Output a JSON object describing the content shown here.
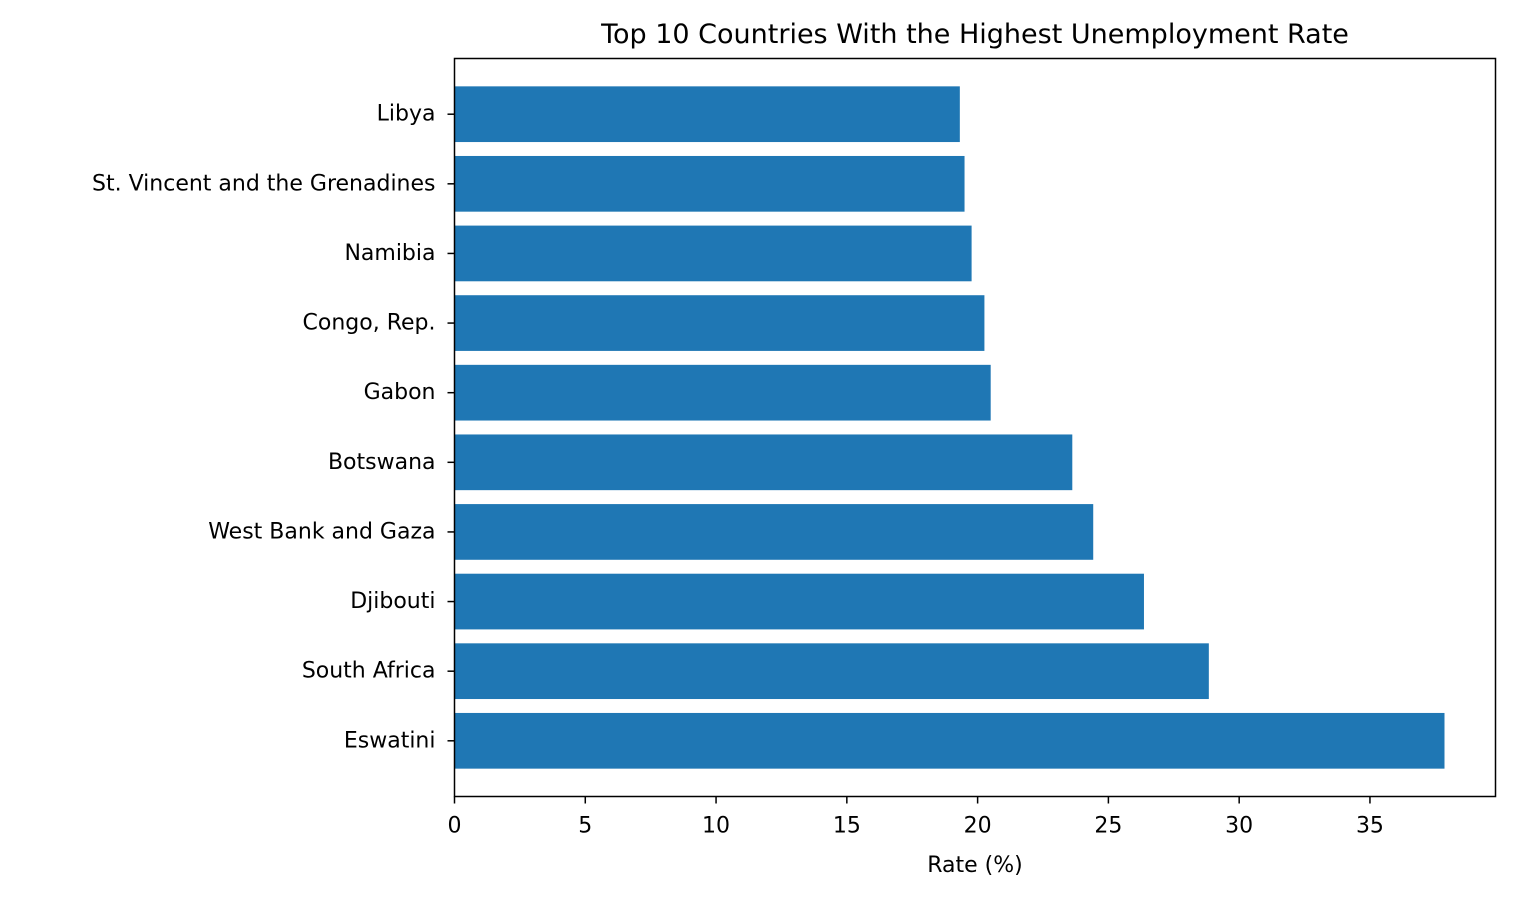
{
  "chart_data": {
    "type": "bar",
    "orientation": "horizontal",
    "title": "Top 10 Countries With the Highest Unemployment Rate",
    "xlabel": "Rate (%)",
    "ylabel": "",
    "xlim": [
      0,
      39.8
    ],
    "xticks": [
      0,
      5,
      10,
      15,
      20,
      25,
      30,
      35
    ],
    "grid": false,
    "bar_color": "#1f77b4",
    "categories": [
      "Eswatini",
      "South Africa",
      "Djibouti",
      "West Bank and Gaza",
      "Botswana",
      "Gabon",
      "Congo, Rep.",
      "Namibia",
      "St. Vincent and the Grenadines",
      "Libya"
    ],
    "values": [
      37.85,
      28.84,
      26.36,
      24.42,
      23.62,
      20.5,
      20.26,
      19.77,
      19.5,
      19.32
    ]
  }
}
